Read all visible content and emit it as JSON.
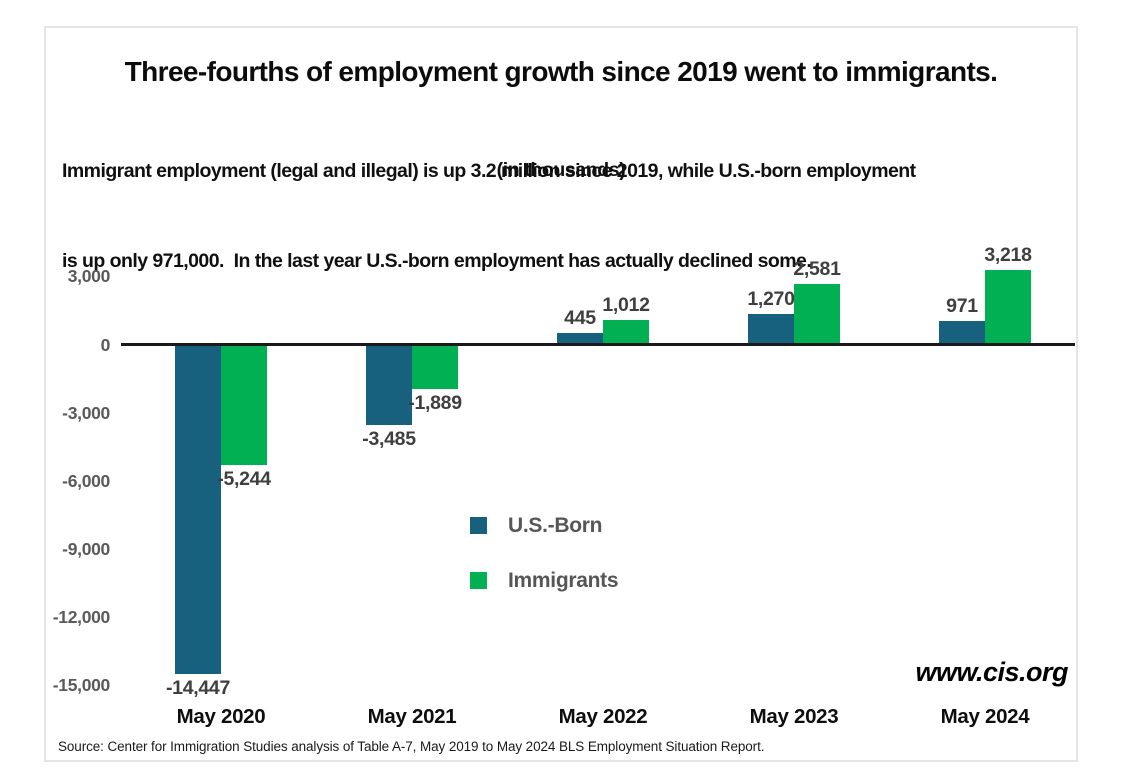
{
  "header": {
    "title": "Three-fourths of employment growth since 2019 went to immigrants.",
    "subtitle_line1": "Immigrant employment (legal and illegal) is up 3.2 million since 2019, while U.S.-born employment",
    "subtitle_line2": "is up only 971,000.  In the last year U.S.-born employment has actually declined some.",
    "units_note": "(in thousands)"
  },
  "chart_data": {
    "type": "bar",
    "title": "Three-fourths of employment growth since 2019 went to immigrants.",
    "subtitle": "Immigrant employment (legal and illegal) is up 3.2 million since 2019, while U.S.-born employment is up only 971,000.  In the last year U.S.-born employment has actually declined some.",
    "units": "in thousands",
    "categories": [
      "May 2020",
      "May 2021",
      "May 2022",
      "May 2023",
      "May 2024"
    ],
    "series": [
      {
        "name": "U.S.-Born",
        "color": "#17617f",
        "values": [
          -14447,
          -3485,
          445,
          1270,
          971
        ],
        "labels": [
          "-14,447",
          "-3,485",
          "445",
          "1,270",
          "971"
        ]
      },
      {
        "name": "Immigrants",
        "color": "#00b052",
        "values": [
          -5244,
          -1889,
          1012,
          2581,
          3218
        ],
        "labels": [
          "-5,244",
          "-1,889",
          "1,012",
          "2,581",
          "3,218"
        ]
      }
    ],
    "y_ticks": [
      {
        "value": 3000,
        "label": "3,000"
      },
      {
        "value": 0,
        "label": "0"
      },
      {
        "value": -3000,
        "label": "-3,000"
      },
      {
        "value": -6000,
        "label": "-6,000"
      },
      {
        "value": -9000,
        "label": "-9,000"
      },
      {
        "value": -12000,
        "label": "-12,000"
      },
      {
        "value": -15000,
        "label": "-15,000"
      }
    ],
    "ylim": [
      -15000,
      3000
    ],
    "xlabel": "",
    "ylabel": "",
    "grid": false,
    "legend_position": "inside-center"
  },
  "legend": {
    "items": [
      {
        "label": "U.S.-Born",
        "color": "#17617f"
      },
      {
        "label": "Immigrants",
        "color": "#00b052"
      }
    ]
  },
  "footer": {
    "watermark": "www.cis.org",
    "source": "Source: Center for Immigration Studies analysis of Table A-7, May 2019 to May 2024 BLS Employment Situation Report."
  }
}
